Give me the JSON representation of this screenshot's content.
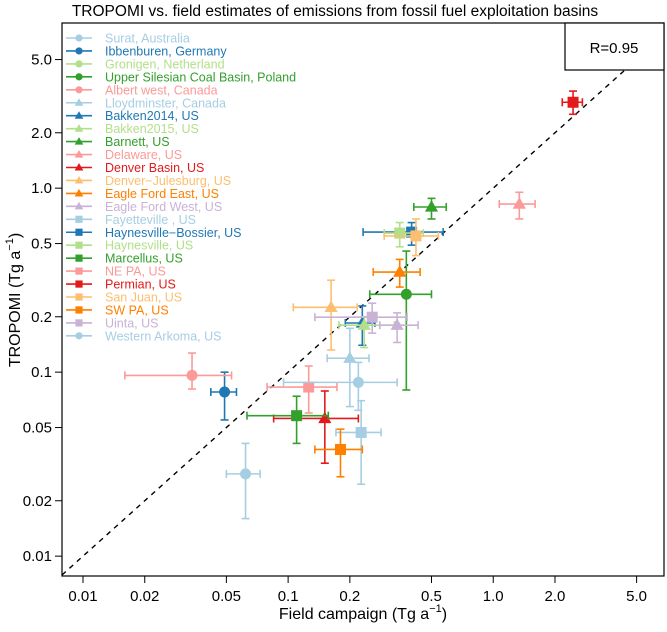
{
  "chart_data": {
    "type": "scatter",
    "title": "TROPOMI vs. field estimates of emissions from fossil fuel exploitation basins",
    "xlabel": "Field campaign (Tg a",
    "ylabel": "TROPOMI (Tg a",
    "unit_exponent": "−1",
    "x_scale": "log",
    "y_scale": "log",
    "xlim": [
      0.0079,
      6.8
    ],
    "ylim": [
      0.0078,
      7.9
    ],
    "x_ticks": [
      "0.01",
      "0.02",
      "0.05",
      "0.1",
      "0.2",
      "0.5",
      "1.0",
      "2.0",
      "5.0"
    ],
    "y_ticks": [
      "0.01",
      "0.02",
      "0.05",
      "0.1",
      "0.2",
      "0.5",
      "1.0",
      "2.0",
      "5.0"
    ],
    "grid": false,
    "reference_line": "1:1 dashed",
    "annotation": "R=0.95",
    "legend_position": "top-left",
    "series": [
      {
        "name": "Surat, Australia",
        "color": "#a6cee3",
        "marker": "circle",
        "x": 0.062,
        "y": 0.028,
        "xerr": [
          0.05,
          0.073
        ],
        "yerr": [
          0.016,
          0.041
        ]
      },
      {
        "name": "Ibbenburen, Germany",
        "color": "#1f78b4",
        "marker": "circle",
        "x": 0.049,
        "y": 0.078,
        "xerr": [
          0.042,
          0.056
        ],
        "yerr": [
          0.055,
          0.1
        ]
      },
      {
        "name": "Gronigen, Netherland",
        "color": "#b2df8a",
        "marker": "circle"
      },
      {
        "name": "Upper Silesian Coal Basin, Poland",
        "color": "#33a02c",
        "marker": "circle",
        "x": 0.377,
        "y": 0.265,
        "xerr": [
          0.25,
          0.5
        ],
        "yerr": [
          0.08,
          0.455
        ]
      },
      {
        "name": "Albert west, Canada",
        "color": "#fb9a99",
        "marker": "circle",
        "x": 0.034,
        "y": 0.096,
        "xerr": [
          0.016,
          0.053
        ],
        "yerr": [
          0.081,
          0.127
        ]
      },
      {
        "name": "Lloydminster, Canada",
        "color": "#a6cee3",
        "marker": "triangle",
        "x": 0.2,
        "y": 0.119,
        "xerr": [
          0.155,
          0.248
        ],
        "yerr": [
          0.065,
          0.173
        ]
      },
      {
        "name": "Bakken2014, US",
        "color": "#1f78b4",
        "marker": "triangle",
        "x": 0.23,
        "y": 0.185,
        "xerr": [
          0.19,
          0.265
        ],
        "yerr": [
          0.14,
          0.229
        ]
      },
      {
        "name": "Bakken2015, US",
        "color": "#b2df8a",
        "marker": "triangle",
        "x": 0.235,
        "y": 0.18,
        "xerr": [
          0.177,
          0.33
        ],
        "yerr": [
          0.136,
          0.2
        ]
      },
      {
        "name": "Barnett, US",
        "color": "#33a02c",
        "marker": "triangle",
        "x": 0.5,
        "y": 0.79,
        "xerr": [
          0.41,
          0.59
        ],
        "yerr": [
          0.68,
          0.88
        ]
      },
      {
        "name": "Delaware, US",
        "color": "#fb9a99",
        "marker": "triangle",
        "x": 1.34,
        "y": 0.82,
        "xerr": [
          1.07,
          1.6
        ],
        "yerr": [
          0.68,
          0.95
        ]
      },
      {
        "name": "Denver Basin, US",
        "color": "#e31a1c",
        "marker": "triangle",
        "x": 0.151,
        "y": 0.056,
        "xerr": [
          0.085,
          0.22
        ],
        "yerr": [
          0.032,
          0.079
        ]
      },
      {
        "name": "Denver−Julesburg, US",
        "color": "#fdbf6f",
        "marker": "triangle",
        "x": 0.162,
        "y": 0.225,
        "xerr": [
          0.106,
          0.217
        ],
        "yerr": [
          0.132,
          0.316
        ]
      },
      {
        "name": "Eagle Ford East, US",
        "color": "#ff7f00",
        "marker": "triangle",
        "x": 0.35,
        "y": 0.35,
        "xerr": [
          0.26,
          0.44
        ],
        "yerr": [
          0.29,
          0.41
        ]
      },
      {
        "name": "Eagle Ford West, US",
        "color": "#cab2d6",
        "marker": "triangle",
        "x": 0.34,
        "y": 0.18,
        "xerr": [
          0.28,
          0.43
        ],
        "yerr": [
          0.145,
          0.21
        ]
      },
      {
        "name": "Fayetteville , US",
        "color": "#a6cee3",
        "marker": "square",
        "x": 0.227,
        "y": 0.047,
        "xerr": [
          0.171,
          0.284
        ],
        "yerr": [
          0.0246,
          0.07
        ]
      },
      {
        "name": "Haynesville−Bossier, US",
        "color": "#1f78b4",
        "marker": "square",
        "x": 0.4,
        "y": 0.577,
        "xerr": [
          0.232,
          0.57
        ],
        "yerr": [
          0.49,
          0.65
        ]
      },
      {
        "name": "Haynesville, US",
        "color": "#b2df8a",
        "marker": "square",
        "x": 0.35,
        "y": 0.57,
        "xerr": [
          0.294,
          0.456
        ],
        "yerr": [
          0.48,
          0.65
        ]
      },
      {
        "name": "Marcellus, US",
        "color": "#33a02c",
        "marker": "square",
        "x": 0.11,
        "y": 0.058,
        "xerr": [
          0.063,
          0.157
        ],
        "yerr": [
          0.041,
          0.074
        ]
      },
      {
        "name": "NE PA, US",
        "color": "#fb9a99",
        "marker": "square",
        "x": 0.126,
        "y": 0.083,
        "xerr": [
          0.079,
          0.173
        ],
        "yerr": [
          0.06,
          0.108
        ]
      },
      {
        "name": "Permian, US",
        "color": "#e31a1c",
        "marker": "square",
        "x": 2.45,
        "y": 2.93,
        "xerr": [
          2.17,
          2.72
        ],
        "yerr": [
          2.52,
          3.37
        ]
      },
      {
        "name": "San Juan, US",
        "color": "#fdbf6f",
        "marker": "square",
        "x": 0.42,
        "y": 0.55,
        "xerr": [
          0.294,
          0.54
        ],
        "yerr": [
          0.43,
          0.68
        ]
      },
      {
        "name": "SW PA, US",
        "color": "#ff7f00",
        "marker": "square",
        "x": 0.18,
        "y": 0.038,
        "xerr": [
          0.135,
          0.23
        ],
        "yerr": [
          0.027,
          0.049
        ]
      },
      {
        "name": "Uinta, US",
        "color": "#cab2d6",
        "marker": "square",
        "x": 0.257,
        "y": 0.199,
        "xerr": [
          0.135,
          0.38
        ],
        "yerr": [
          0.163,
          0.237
        ]
      },
      {
        "name": "Western Arkoma, US",
        "color": "#a6cee3",
        "marker": "circle",
        "x": 0.22,
        "y": 0.088,
        "xerr": [
          0.095,
          0.34
        ],
        "yerr": [
          0.062,
          0.113
        ]
      }
    ]
  }
}
